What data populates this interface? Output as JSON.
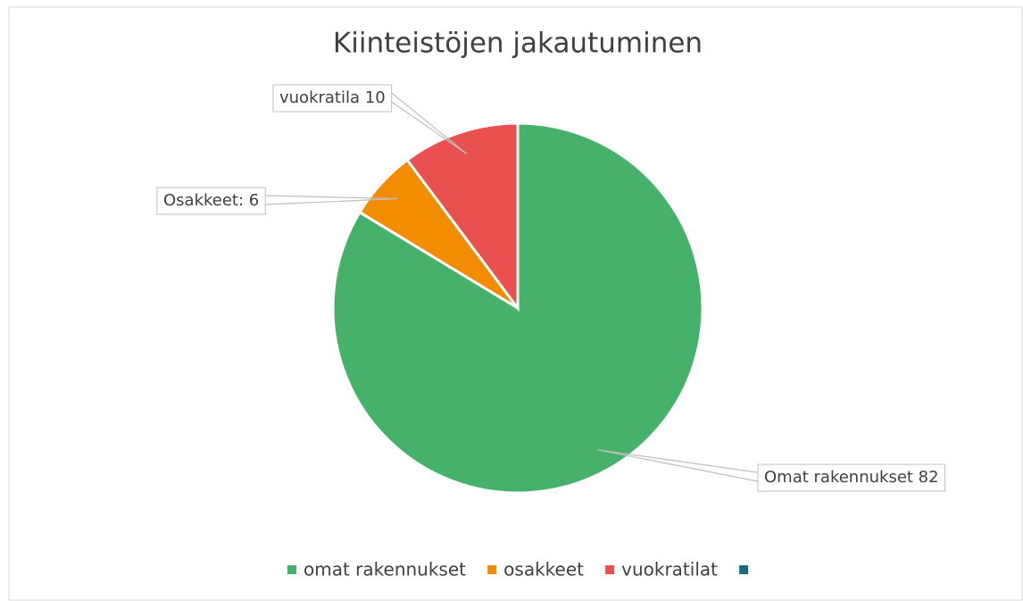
{
  "chart_data": {
    "type": "pie",
    "title": "Kiinteistöjen jakautuminen",
    "categories": [
      "omat rakennukset",
      "osakkeet",
      "vuokratilat",
      null
    ],
    "values": [
      82,
      6,
      10,
      0
    ],
    "value_labels": [
      "Omat rakennukset 82",
      "Osakkeet: 6",
      "vuokratila 10",
      null
    ],
    "colors": [
      "#46b16b",
      "#f28c00",
      "#e95151",
      "#1b6a7e"
    ],
    "legend": "bottom"
  }
}
